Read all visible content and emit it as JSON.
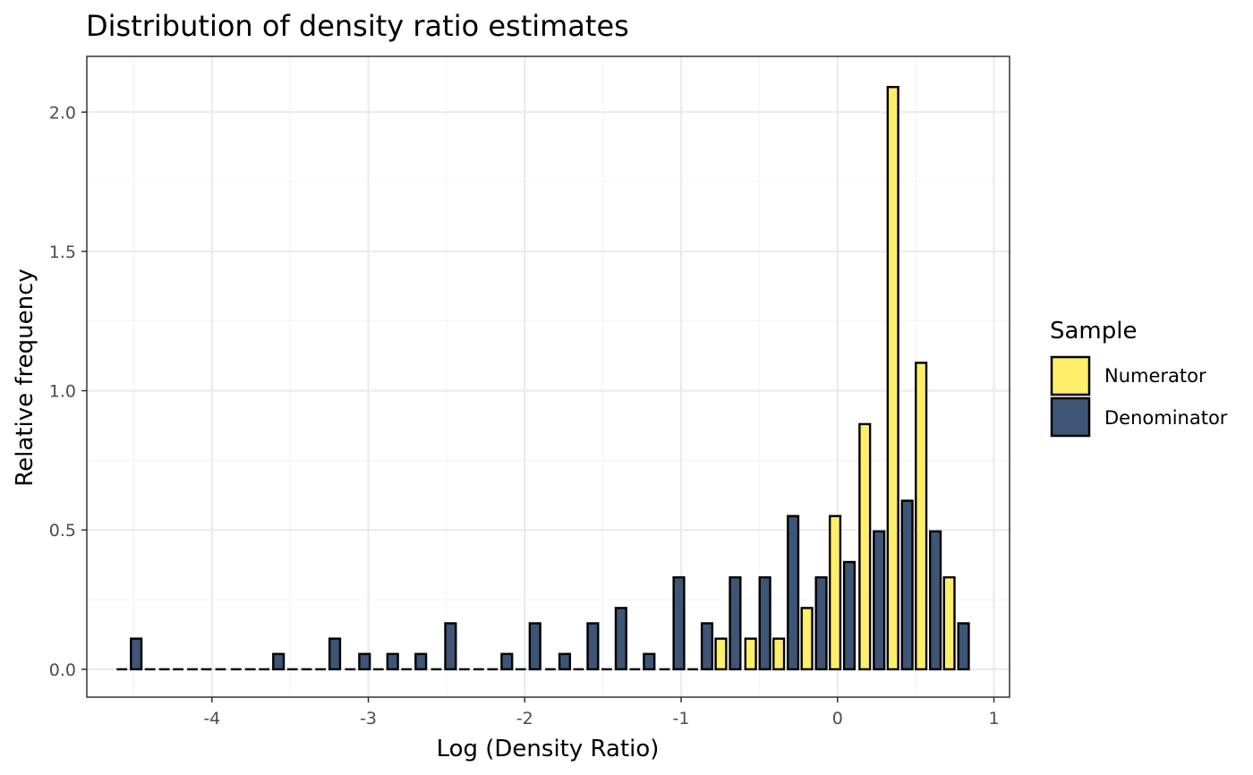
{
  "chart_data": {
    "type": "bar",
    "title": "Distribution of density ratio estimates",
    "xlabel": "Log (Density Ratio)",
    "ylabel": "Relative frequency",
    "xlim": [
      -4.8,
      1.1
    ],
    "ylim": [
      -0.1,
      2.2
    ],
    "xticks": [
      -4,
      -3,
      -2,
      -1,
      0,
      1
    ],
    "xtick_labels": [
      "-4",
      "-3",
      "-2",
      "-1",
      "0",
      "1"
    ],
    "yticks": [
      0.0,
      0.5,
      1.0,
      1.5,
      2.0
    ],
    "ytick_labels": [
      "0.0",
      "0.5",
      "1.0",
      "1.5",
      "2.0"
    ],
    "grid": true,
    "bin_width": 0.1826,
    "dodge": "side-by-side",
    "legend": {
      "title": "Sample",
      "position": "right",
      "entries": [
        "Numerator",
        "Denominator"
      ]
    },
    "colors": {
      "Numerator": "#ffee6a",
      "Denominator": "#3e5575",
      "outline": "#000000",
      "grid_major": "#ebebeb",
      "grid_minor": "#f4f4f4",
      "panel_border": "#333333"
    },
    "bin_centers": [
      -4.53,
      -4.35,
      -4.17,
      -3.99,
      -3.8,
      -3.62,
      -3.44,
      -3.26,
      -3.07,
      -2.89,
      -2.71,
      -2.52,
      -2.34,
      -2.16,
      -1.98,
      -1.79,
      -1.61,
      -1.43,
      -1.25,
      -1.06,
      -0.88,
      -0.7,
      -0.51,
      -0.33,
      -0.15,
      0.03,
      0.22,
      0.4,
      0.58,
      0.76
    ],
    "series": [
      {
        "name": "Numerator",
        "values": [
          0,
          0,
          0,
          0,
          0,
          0,
          0,
          0,
          0,
          0,
          0,
          0,
          0,
          0,
          0,
          0,
          0,
          0,
          0,
          0,
          0,
          0.11,
          0.11,
          0.11,
          0.22,
          0.55,
          0.88,
          2.09,
          1.1,
          0.33
        ]
      },
      {
        "name": "Denominator",
        "values": [
          0.11,
          0,
          0,
          0,
          0,
          0.055,
          0,
          0.11,
          0.055,
          0.055,
          0.055,
          0.165,
          0,
          0.055,
          0.165,
          0.055,
          0.165,
          0.22,
          0.055,
          0.33,
          0.165,
          0.33,
          0.33,
          0.55,
          0.33,
          0.385,
          0.495,
          0.605,
          0.495,
          0.165
        ]
      }
    ]
  }
}
